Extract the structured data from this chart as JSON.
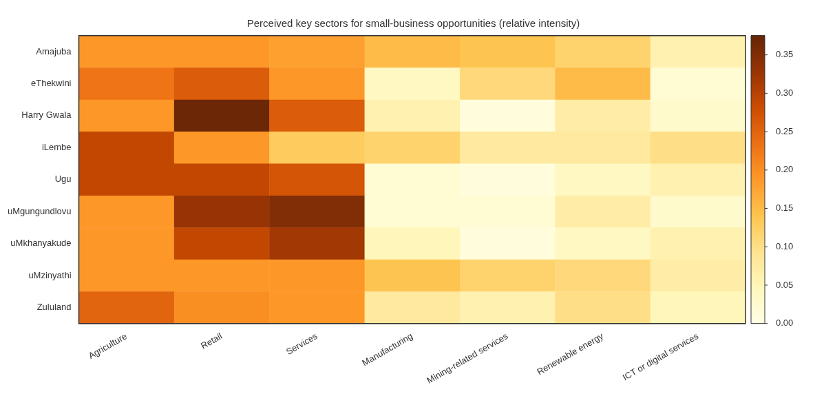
{
  "chart_data": {
    "type": "heatmap",
    "title": "Perceived key sectors for small-business opportunities (relative intensity)",
    "categories": [
      "Agriculture",
      "Retail",
      "Services",
      "Manufacturing",
      "Mining-related services",
      "Renewable energy",
      "ICT or digital services"
    ],
    "y_categories": [
      "Amajuba",
      "eThekwini",
      "Harry Gwala",
      "iLembe",
      "Ugu",
      "uMgungundlovu",
      "uMkhanyakude",
      "uMzinyathi",
      "Zululand"
    ],
    "cells": [
      [
        0.19,
        0.19,
        0.18,
        0.15,
        0.14,
        0.12,
        0.06
      ],
      [
        0.23,
        0.26,
        0.19,
        0.04,
        0.11,
        0.15,
        0.02
      ],
      [
        0.19,
        0.37,
        0.26,
        0.06,
        0.01,
        0.07,
        0.03
      ],
      [
        0.29,
        0.19,
        0.13,
        0.12,
        0.08,
        0.08,
        0.1
      ],
      [
        0.29,
        0.29,
        0.27,
        0.02,
        0.01,
        0.04,
        0.06
      ],
      [
        0.19,
        0.33,
        0.35,
        0.02,
        0.02,
        0.07,
        0.03
      ],
      [
        0.19,
        0.29,
        0.32,
        0.05,
        0.01,
        0.04,
        0.06
      ],
      [
        0.19,
        0.19,
        0.19,
        0.14,
        0.12,
        0.11,
        0.07
      ],
      [
        0.25,
        0.2,
        0.19,
        0.08,
        0.06,
        0.1,
        0.05
      ]
    ],
    "clim": [
      0,
      0.375
    ],
    "cticks": [
      {
        "value": 0,
        "label": "0.00"
      },
      {
        "value": 0.05,
        "label": "0.05"
      },
      {
        "value": 0.1,
        "label": "0.10"
      },
      {
        "value": 0.15,
        "label": "0.15"
      },
      {
        "value": 0.2,
        "label": "0.20"
      },
      {
        "value": 0.25,
        "label": "0.25"
      },
      {
        "value": 0.3,
        "label": "0.30"
      },
      {
        "value": 0.35,
        "label": "0.35"
      }
    ]
  }
}
